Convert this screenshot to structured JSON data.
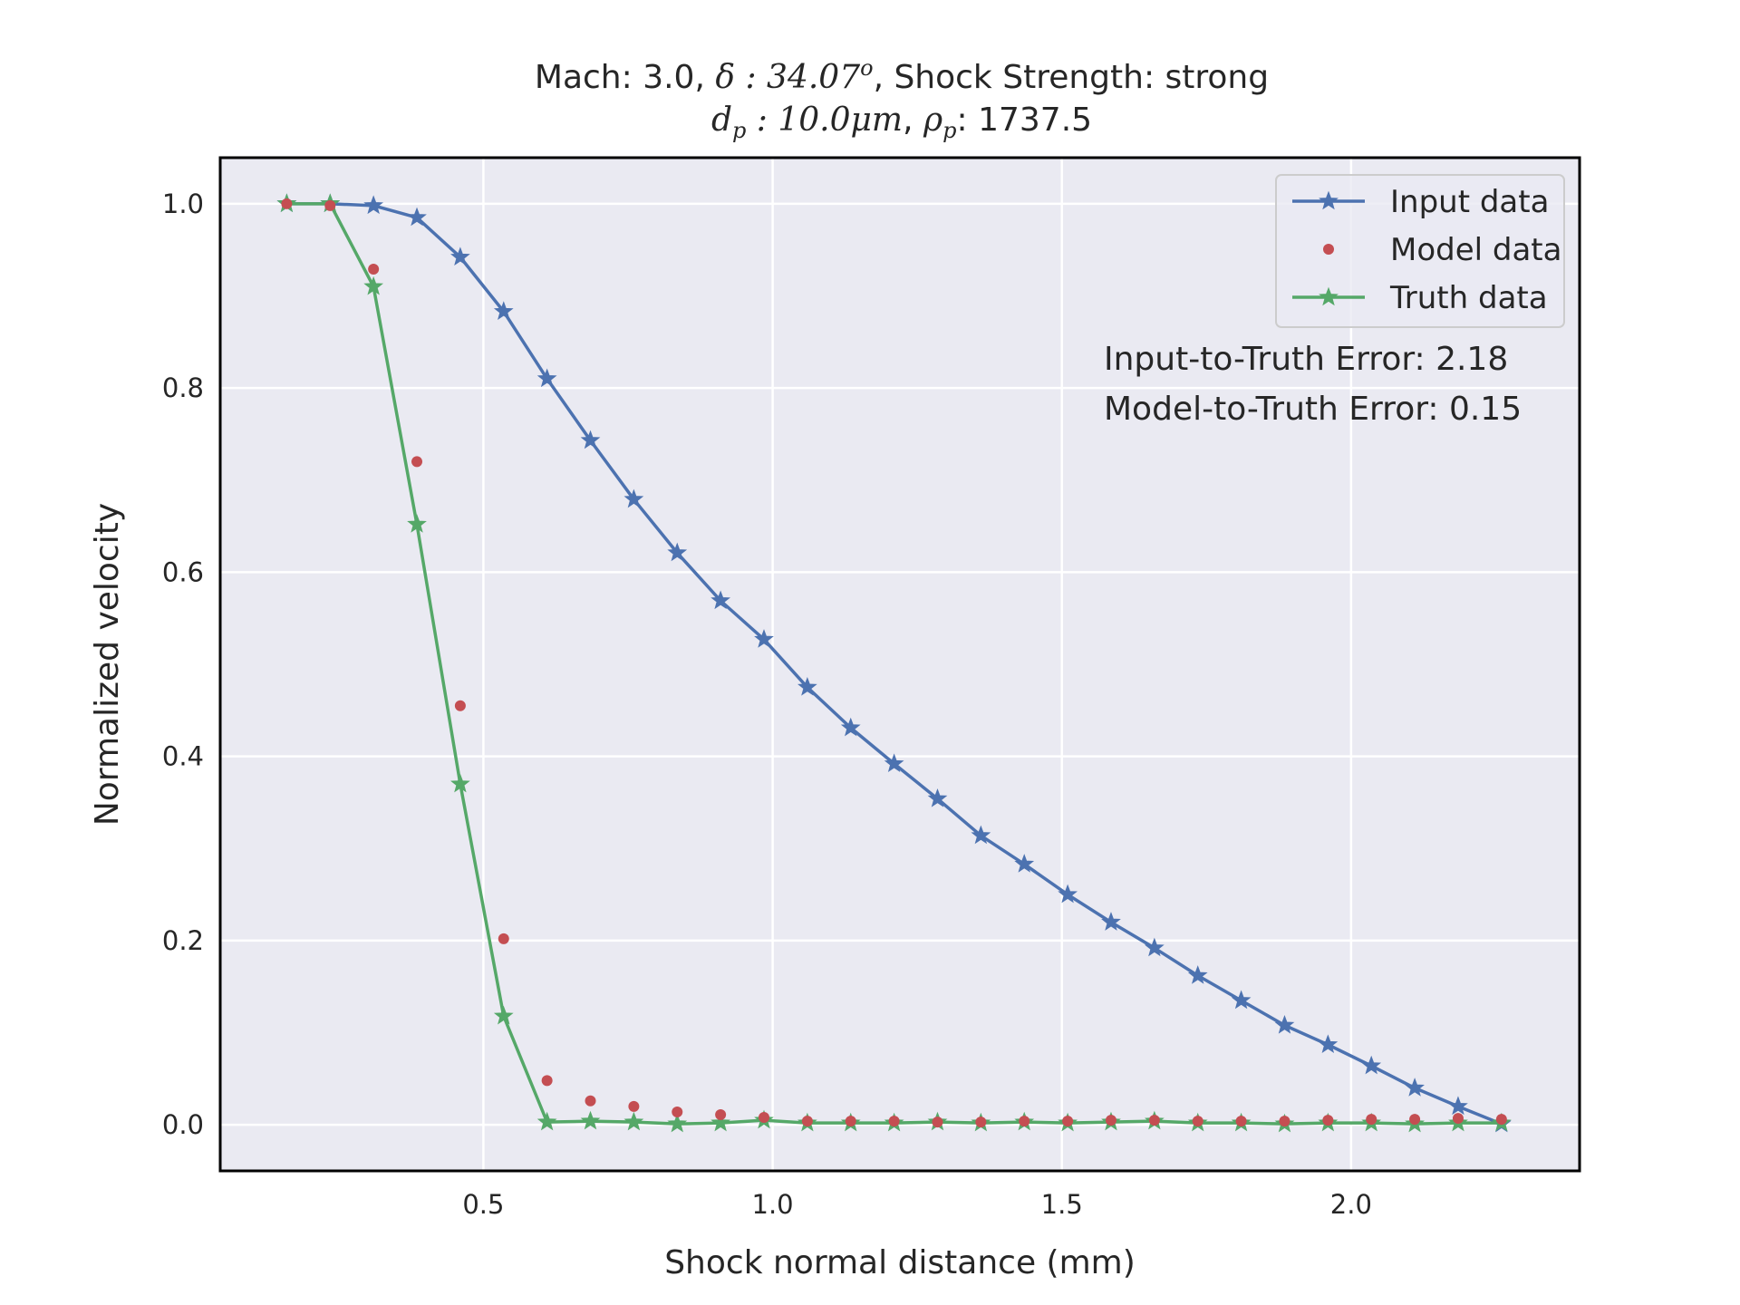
{
  "chart_data": {
    "type": "line",
    "title_parts": {
      "mach_label": "Mach: 3.0, ",
      "delta_symbol": "δ",
      "delta_value": " : 34.07",
      "delta_sup": "o",
      "shock_label": ", Shock Strength: strong",
      "dp_symbol": "d",
      "dp_sub": "p",
      "dp_value": " : 10.0μm",
      "rho_sep": ", ",
      "rho_symbol": "ρ",
      "rho_sub": "p",
      "rho_value": ": 1737.5"
    },
    "xlabel": "Shock normal distance (mm)",
    "ylabel": "Normalized velocity",
    "xlim": [
      0.045,
      2.395
    ],
    "ylim": [
      -0.05,
      1.05
    ],
    "xticks": [
      0.5,
      1.0,
      1.5,
      2.0
    ],
    "xtick_labels": [
      "0.5",
      "1.0",
      "1.5",
      "2.0"
    ],
    "yticks": [
      0.0,
      0.2,
      0.4,
      0.6,
      0.8,
      1.0
    ],
    "ytick_labels": [
      "0.0",
      "0.2",
      "0.4",
      "0.6",
      "0.8",
      "1.0"
    ],
    "grid": true,
    "legend_position": "top-right",
    "x": [
      0.16,
      0.235,
      0.31,
      0.385,
      0.46,
      0.535,
      0.61,
      0.685,
      0.76,
      0.835,
      0.91,
      0.985,
      1.06,
      1.135,
      1.21,
      1.285,
      1.36,
      1.435,
      1.51,
      1.585,
      1.66,
      1.735,
      1.81,
      1.885,
      1.96,
      2.035,
      2.11,
      2.185,
      2.26
    ],
    "series": [
      {
        "name": "Input data",
        "color": "#4c72b0",
        "style": "line-star",
        "values": [
          1.0,
          1.0,
          0.998,
          0.985,
          0.942,
          0.883,
          0.81,
          0.743,
          0.679,
          0.621,
          0.569,
          0.527,
          0.475,
          0.431,
          0.392,
          0.354,
          0.314,
          0.283,
          0.25,
          0.22,
          0.192,
          0.162,
          0.135,
          0.108,
          0.087,
          0.064,
          0.04,
          0.02,
          0.001
        ]
      },
      {
        "name": "Model data",
        "color": "#c44e52",
        "style": "dot",
        "values": [
          1.0,
          0.998,
          0.929,
          0.72,
          0.455,
          0.202,
          0.048,
          0.026,
          0.02,
          0.014,
          0.011,
          0.008,
          0.004,
          0.004,
          0.004,
          0.003,
          0.003,
          0.004,
          0.004,
          0.005,
          0.005,
          0.004,
          0.004,
          0.004,
          0.005,
          0.006,
          0.006,
          0.007,
          0.006
        ]
      },
      {
        "name": "Truth data",
        "color": "#55a868",
        "style": "line-star",
        "values": [
          1.0,
          1.0,
          0.91,
          0.652,
          0.37,
          0.118,
          0.003,
          0.004,
          0.003,
          0.001,
          0.002,
          0.005,
          0.002,
          0.002,
          0.002,
          0.003,
          0.002,
          0.003,
          0.002,
          0.003,
          0.004,
          0.002,
          0.002,
          0.001,
          0.002,
          0.002,
          0.001,
          0.002,
          0.002
        ]
      }
    ],
    "annotations": [
      "Input-to-Truth Error: 2.18",
      "Model-to-Truth Error: 0.15"
    ]
  }
}
